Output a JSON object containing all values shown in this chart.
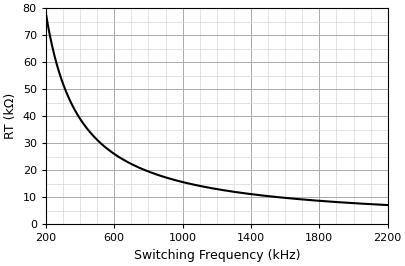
{
  "title": "",
  "xlabel": "Switching Frequency (kHz)",
  "ylabel": "RT (kΩ)",
  "xlim": [
    200,
    2200
  ],
  "ylim": [
    0,
    80
  ],
  "xticks": [
    200,
    600,
    1000,
    1400,
    1800,
    2200
  ],
  "yticks": [
    0,
    10,
    20,
    30,
    40,
    50,
    60,
    70,
    80
  ],
  "x_minor_ticks": [
    200,
    300,
    400,
    500,
    600,
    700,
    800,
    900,
    1000,
    1100,
    1200,
    1300,
    1400,
    1500,
    1600,
    1700,
    1800,
    1900,
    2000,
    2100,
    2200
  ],
  "y_minor_ticks": [
    0,
    5,
    10,
    15,
    20,
    25,
    30,
    35,
    40,
    45,
    50,
    55,
    60,
    65,
    70,
    75,
    80
  ],
  "line_color": "#000000",
  "line_width": 1.5,
  "bg_color": "#ffffff",
  "major_grid_color": "#aaaaaa",
  "minor_grid_color": "#d8d8d8",
  "freq_min": 200,
  "freq_max": 2200,
  "curve_A": 15620,
  "curve_B": 0.0,
  "xlabel_fontsize": 9,
  "ylabel_fontsize": 9,
  "tick_labelsize": 8
}
